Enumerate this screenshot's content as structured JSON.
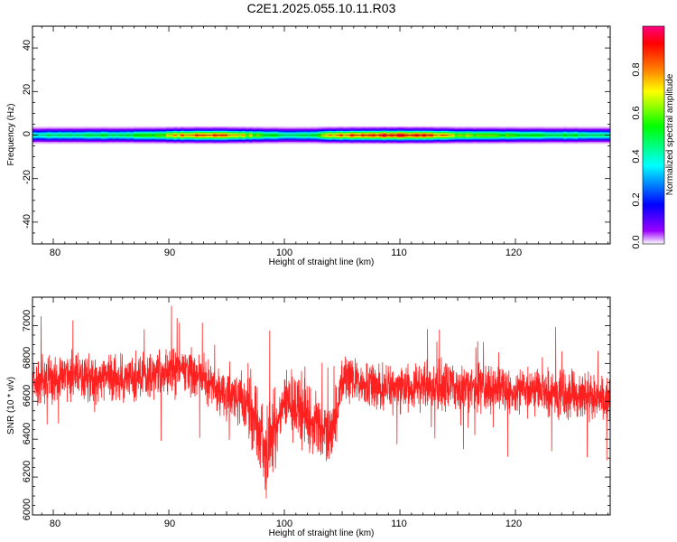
{
  "page_title": "C2E1.2025.055.10.11.R03",
  "chart_data": [
    {
      "type": "heatmap",
      "title": "C2E1.2025.055.10.11.R03",
      "xlabel": "Height of straight line (km)",
      "ylabel": "Frequency (Hz)",
      "xlim": [
        78.2,
        128.2
      ],
      "ylim": [
        -50,
        50
      ],
      "xticks": [
        80,
        90,
        100,
        110,
        120
      ],
      "yticks": [
        40,
        20,
        0,
        -20,
        -40
      ],
      "xtick_labels": [
        "80",
        "90",
        "100",
        "110",
        "120"
      ],
      "ytick_labels": [
        "40",
        "20",
        "0",
        "-20",
        "-40"
      ],
      "band_center_hz": 0,
      "band_half_width_hz": 3,
      "amplitude_profile": {
        "x": [
          78.2,
          80,
          82,
          84,
          86,
          88,
          89.5,
          91,
          93,
          95,
          96.5,
          98,
          99.5,
          101,
          102.5,
          104,
          106,
          108,
          110,
          112,
          113.5,
          115,
          117,
          119,
          121,
          123,
          125,
          126.5,
          128.2
        ],
        "values": [
          0.42,
          0.45,
          0.44,
          0.5,
          0.48,
          0.55,
          0.62,
          0.78,
          0.85,
          0.82,
          0.7,
          0.58,
          0.5,
          0.45,
          0.52,
          0.72,
          0.86,
          0.9,
          0.93,
          0.88,
          0.78,
          0.66,
          0.6,
          0.58,
          0.55,
          0.5,
          0.52,
          0.48,
          0.45
        ]
      },
      "colorbar": {
        "label": "Normalized spectral amplitude",
        "range": [
          0,
          1
        ],
        "ticks": [
          0.0,
          0.2,
          0.4,
          0.6,
          0.8
        ],
        "tick_labels": [
          "0.0",
          "0.2",
          "0.4",
          "0.6",
          "0.8"
        ],
        "colormap": [
          "#ffffff",
          "#9a00ff",
          "#0000ff",
          "#00ffff",
          "#00ff00",
          "#ffff00",
          "#ff8000",
          "#ff0000",
          "#ff0080"
        ]
      }
    },
    {
      "type": "line",
      "xlabel": "Height of straight line (km)",
      "ylabel": "SNR (10 * v/v)",
      "xlim": [
        78.2,
        128.2
      ],
      "ylim": [
        6000,
        7150
      ],
      "xticks": [
        80,
        90,
        100,
        110,
        120
      ],
      "yticks": [
        6000,
        6200,
        6400,
        6600,
        6800,
        7000
      ],
      "xtick_labels": [
        "80",
        "90",
        "100",
        "110",
        "120"
      ],
      "ytick_labels": [
        "6000",
        "6200",
        "6400",
        "6600",
        "6800",
        "7000"
      ],
      "color": "#ff2020",
      "series": [
        {
          "x": [
            78.2,
            80,
            82,
            84,
            86,
            88,
            90,
            91,
            92,
            93,
            94,
            95,
            96,
            97,
            97.8,
            98.4,
            99,
            100,
            101,
            102,
            103,
            104,
            104.5,
            105,
            106,
            108,
            110,
            112,
            114,
            116,
            118,
            120,
            122,
            124,
            126,
            128.2
          ],
          "values": [
            6700,
            6710,
            6740,
            6720,
            6720,
            6730,
            6760,
            6780,
            6750,
            6720,
            6680,
            6640,
            6600,
            6580,
            6450,
            6300,
            6450,
            6560,
            6570,
            6520,
            6460,
            6440,
            6520,
            6700,
            6710,
            6680,
            6670,
            6680,
            6690,
            6680,
            6670,
            6660,
            6650,
            6640,
            6620,
            6610
          ]
        }
      ]
    }
  ]
}
